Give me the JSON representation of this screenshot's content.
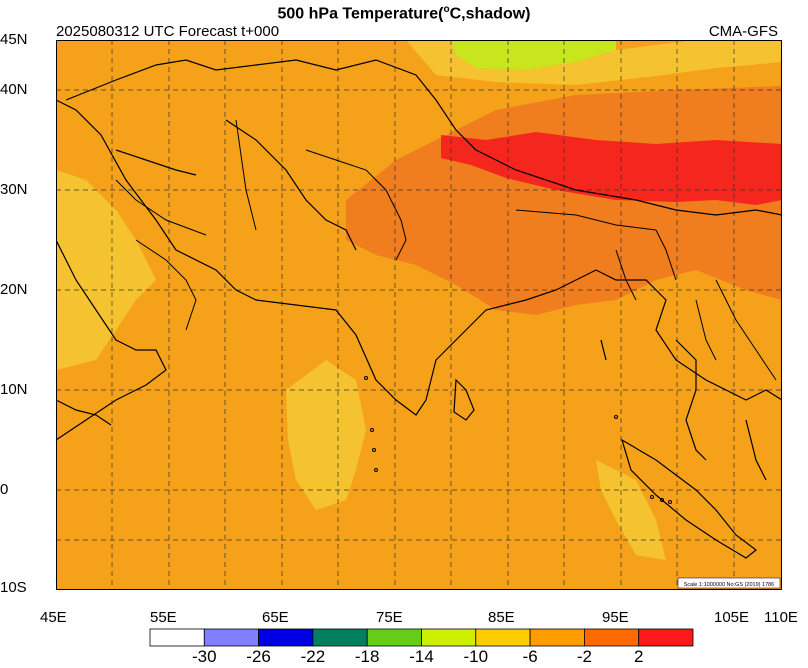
{
  "title_parts": {
    "before": "500 hPa Temperature(",
    "sup": "o",
    "after": "C,shadow)"
  },
  "info": {
    "left": "2025080312 UTC Forecast t+000",
    "right": "CMA-GFS"
  },
  "scale_note": "Scale 1:1000000 No:GS (2019) 1786",
  "lat_labels": [
    "45N",
    "40N",
    "30N",
    "20N",
    "10N",
    "0",
    "10S"
  ],
  "lon_labels": [
    "45E",
    "55E",
    "65E",
    "75E",
    "85E",
    "95E",
    "105E",
    "110E"
  ],
  "colorbar": {
    "colors": [
      "#ffffff",
      "#8080ff",
      "#0000e6",
      "#008060",
      "#66cc1a",
      "#ccf000",
      "#ffcc00",
      "#ff9c00",
      "#ff6a00",
      "#ff1a1a"
    ],
    "labels": [
      "-30",
      "-26",
      "-22",
      "-18",
      "-14",
      "-10",
      "-6",
      "-2",
      "2"
    ]
  },
  "field_colors": {
    "base": "#f5a21a",
    "warm": "#f07d1e",
    "hot": "#f5261e",
    "cool": "#f6c330",
    "cold": "#c8e61e"
  }
}
